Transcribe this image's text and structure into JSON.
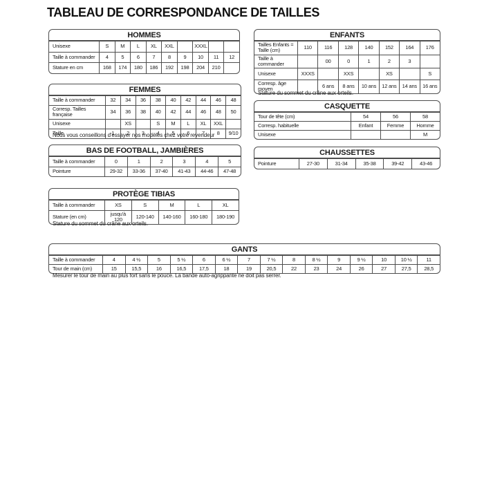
{
  "page": {
    "title": "TABLEAU DE CORRESPONDANCE DE TAILLES"
  },
  "colors": {
    "text": "#1a1a1a",
    "border": "#4d4d4d",
    "background": "#ffffff"
  },
  "tables": {
    "hommes": {
      "title": "HOMMES",
      "rows": [
        {
          "label": "Unisexe",
          "cells": [
            "S",
            "M",
            "L",
            "XL",
            "XXL",
            "",
            "XXXL",
            "",
            ""
          ]
        },
        {
          "label": "Taille à commander",
          "cells": [
            "4",
            "5",
            "6",
            "7",
            "8",
            "9",
            "10",
            "11",
            "12"
          ]
        },
        {
          "label": "Stature en cm",
          "cells": [
            "168",
            "174",
            "180",
            "186",
            "192",
            "198",
            "204",
            "210",
            ""
          ]
        }
      ]
    },
    "femmes": {
      "title": "FEMMES",
      "rows": [
        {
          "label": "Taille à commander",
          "cells": [
            "32",
            "34",
            "36",
            "38",
            "40",
            "42",
            "44",
            "46",
            "48"
          ]
        },
        {
          "label": "Corresp. Tailles française",
          "cells": [
            "34",
            "36",
            "38",
            "40",
            "42",
            "44",
            "46",
            "48",
            "50"
          ]
        },
        {
          "label": "Unisexe",
          "cells": [
            "",
            "XS",
            "",
            "S",
            "M",
            "L",
            "XL",
            "XXL",
            ""
          ]
        },
        {
          "label": "Taille",
          "cells": [
            "1",
            "2",
            "3",
            "4",
            "5",
            "6",
            "7",
            "8",
            "9/10"
          ]
        }
      ],
      "note": "Nous vous conseillons d'essayer nos modèles chez votre revendeur"
    },
    "bas_football": {
      "title": "BAS DE FOOTBALL, JAMBIÈRES",
      "rows": [
        {
          "label": "Taille à commander",
          "cells": [
            "0",
            "1",
            "2",
            "3",
            "4",
            "5"
          ]
        },
        {
          "label": "Pointure",
          "cells": [
            "29-32",
            "33-36",
            "37-40",
            "41-43",
            "44-46",
            "47-48"
          ]
        }
      ]
    },
    "protege_tibias": {
      "title": "PROTÈGE TIBIAS",
      "rows": [
        {
          "label": "Taille à commander",
          "cells": [
            "XS",
            "S",
            "M",
            "L",
            "XL"
          ]
        },
        {
          "label": "Stature (en cm)",
          "cells": [
            "jusqu'à 120",
            "120-140",
            "140-160",
            "160-180",
            "180-190"
          ]
        }
      ],
      "note": "Stature du sommet du crâne aux orteils."
    },
    "enfants": {
      "title": "ENFANTS",
      "rows": [
        {
          "label": "Tailles Enfants = Taille (cm)",
          "cells": [
            "110",
            "116",
            "128",
            "140",
            "152",
            "164",
            "176"
          ]
        },
        {
          "label": "Taille à commander",
          "cells": [
            "",
            "00",
            "0",
            "1",
            "2",
            "3",
            ""
          ]
        },
        {
          "label": "Unisexe",
          "cells": [
            "XXXS",
            "",
            "XXS",
            "",
            "XS",
            "",
            "S"
          ]
        },
        {
          "label": "Corresp. âge moyen",
          "cells": [
            "",
            "6 ans",
            "8 ans",
            "10 ans",
            "12 ans",
            "14 ans",
            "16 ans"
          ]
        }
      ],
      "note": "Stature du sommet du crâne aux orteils."
    },
    "casquette": {
      "title": "CASQUETTE",
      "rows": [
        {
          "label": "Tour de tête (cm)",
          "cells": [
            "54",
            "56",
            "58"
          ]
        },
        {
          "label": "Corresp. habituelle",
          "cells": [
            "Enfant",
            "Femme",
            "Homme"
          ]
        },
        {
          "label": "Unisexe",
          "cells": [
            "",
            "",
            "M"
          ]
        }
      ]
    },
    "chaussettes": {
      "title": "CHAUSSETTES",
      "rows": [
        {
          "label": "Pointure",
          "cells": [
            "27-30",
            "31-34",
            "35-38",
            "39-42",
            "43-46"
          ]
        }
      ]
    },
    "gants": {
      "title": "GANTS",
      "rows": [
        {
          "label": "Taille à commander",
          "cells": [
            "4",
            "4 ½",
            "5",
            "5 ½",
            "6",
            "6 ½",
            "7",
            "7 ½",
            "8",
            "8 ½",
            "9",
            "9 ½",
            "10",
            "10 ½",
            "11"
          ]
        },
        {
          "label": "Tour de main (cm)",
          "cells": [
            "15",
            "15,5",
            "16",
            "16,5",
            "17,5",
            "18",
            "19",
            "20,5",
            "22",
            "23",
            "24",
            "26",
            "27",
            "27,5",
            "28,5"
          ]
        }
      ],
      "note": "Mesurer le tour de main au plus fort sans le pouce. La bande auto-agrippante ne doit pas serrer."
    }
  }
}
